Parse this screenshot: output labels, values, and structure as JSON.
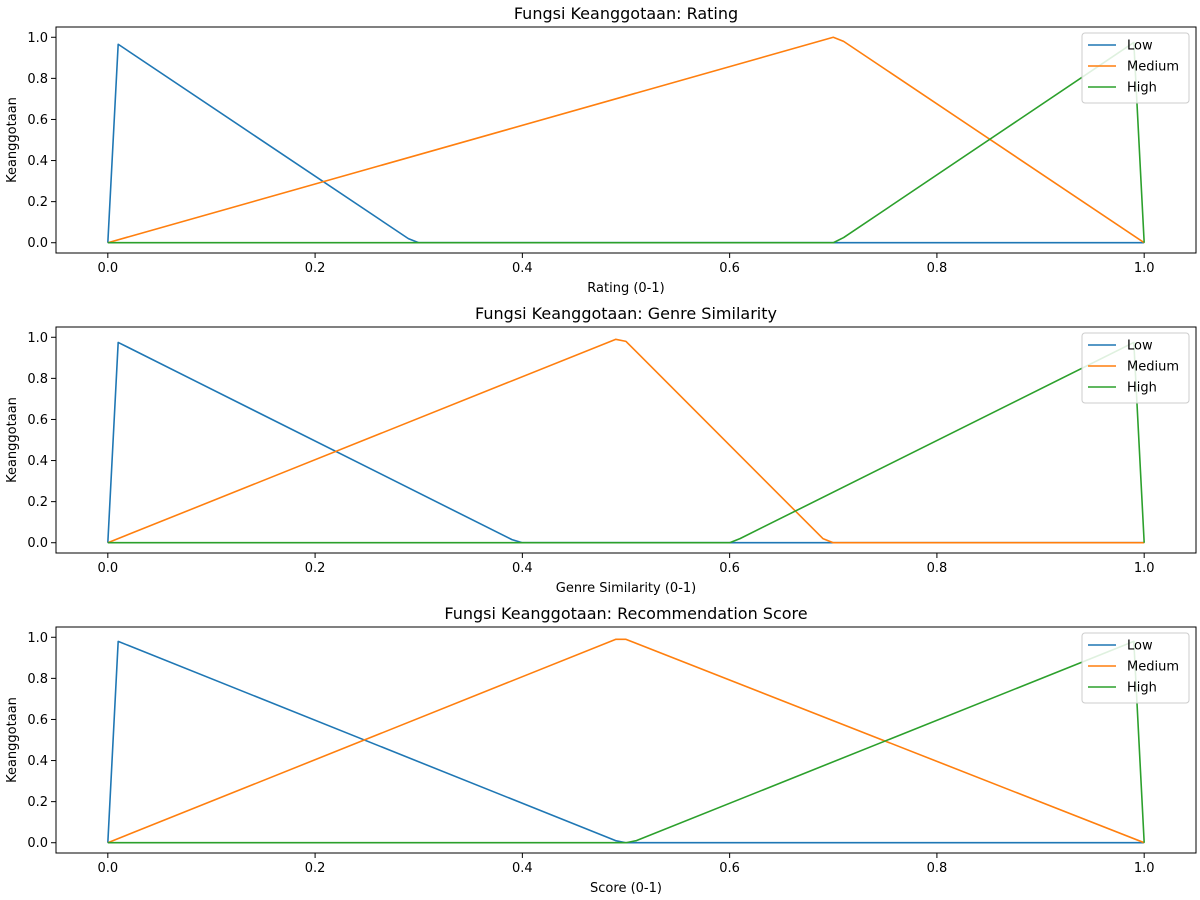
{
  "chart_data": [
    {
      "type": "line",
      "title": "Fungsi Keanggotaan: Rating",
      "xlabel": "Rating (0-1)",
      "ylabel": "Keanggotaan",
      "xlim": [
        -0.05,
        1.05
      ],
      "ylim": [
        -0.05,
        1.05
      ],
      "xticks": [
        "0.0",
        "0.2",
        "0.4",
        "0.6",
        "0.8",
        "1.0"
      ],
      "yticks": [
        "0.0",
        "0.2",
        "0.4",
        "0.6",
        "0.8",
        "1.0"
      ],
      "legend": "top-right",
      "series": [
        {
          "name": "Low",
          "color": "#1f77b4",
          "x": [
            0,
            0.01,
            0.29,
            0.3,
            0.31,
            0.99,
            1.0
          ],
          "y": [
            0,
            0.966,
            0.02,
            0,
            0,
            0,
            0
          ]
        },
        {
          "name": "Medium",
          "color": "#ff7f0e",
          "x": [
            0,
            0.7,
            0.71,
            1.0
          ],
          "y": [
            0,
            1.0,
            0.98,
            0
          ]
        },
        {
          "name": "High",
          "color": "#2ca02c",
          "x": [
            0,
            0.7,
            0.71,
            0.99,
            1.0
          ],
          "y": [
            0,
            0,
            0.025,
            0.975,
            0
          ]
        }
      ]
    },
    {
      "type": "line",
      "title": "Fungsi Keanggotaan: Genre Similarity",
      "xlabel": "Genre Similarity (0-1)",
      "ylabel": "Keanggotaan",
      "xlim": [
        -0.05,
        1.05
      ],
      "ylim": [
        -0.05,
        1.05
      ],
      "xticks": [
        "0.0",
        "0.2",
        "0.4",
        "0.6",
        "0.8",
        "1.0"
      ],
      "yticks": [
        "0.0",
        "0.2",
        "0.4",
        "0.6",
        "0.8",
        "1.0"
      ],
      "legend": "top-right",
      "series": [
        {
          "name": "Low",
          "color": "#1f77b4",
          "x": [
            0,
            0.01,
            0.39,
            0.4,
            0.41,
            0.99,
            1.0
          ],
          "y": [
            0,
            0.975,
            0.015,
            0,
            0,
            0,
            0
          ]
        },
        {
          "name": "Medium",
          "color": "#ff7f0e",
          "x": [
            0,
            0.49,
            0.5,
            0.69,
            0.7,
            1.0
          ],
          "y": [
            0,
            0.99,
            0.98,
            0.02,
            0,
            0
          ]
        },
        {
          "name": "High",
          "color": "#2ca02c",
          "x": [
            0,
            0.59,
            0.6,
            0.61,
            0.99,
            1.0
          ],
          "y": [
            0,
            0,
            0,
            0.02,
            0.975,
            0
          ]
        }
      ]
    },
    {
      "type": "line",
      "title": "Fungsi Keanggotaan: Recommendation Score",
      "xlabel": "Score (0-1)",
      "ylabel": "Keanggotaan",
      "xlim": [
        -0.05,
        1.05
      ],
      "ylim": [
        -0.05,
        1.05
      ],
      "xticks": [
        "0.0",
        "0.2",
        "0.4",
        "0.6",
        "0.8",
        "1.0"
      ],
      "yticks": [
        "0.0",
        "0.2",
        "0.4",
        "0.6",
        "0.8",
        "1.0"
      ],
      "legend": "top-right",
      "series": [
        {
          "name": "Low",
          "color": "#1f77b4",
          "x": [
            0,
            0.01,
            0.49,
            0.5,
            0.99,
            1.0
          ],
          "y": [
            0,
            0.98,
            0.01,
            0,
            0,
            0
          ]
        },
        {
          "name": "Medium",
          "color": "#ff7f0e",
          "x": [
            0,
            0.49,
            0.5,
            1.0
          ],
          "y": [
            0,
            0.99,
            0.99,
            0
          ]
        },
        {
          "name": "High",
          "color": "#2ca02c",
          "x": [
            0,
            0.5,
            0.51,
            0.99,
            1.0
          ],
          "y": [
            0,
            0,
            0.01,
            0.98,
            0
          ]
        }
      ]
    }
  ]
}
